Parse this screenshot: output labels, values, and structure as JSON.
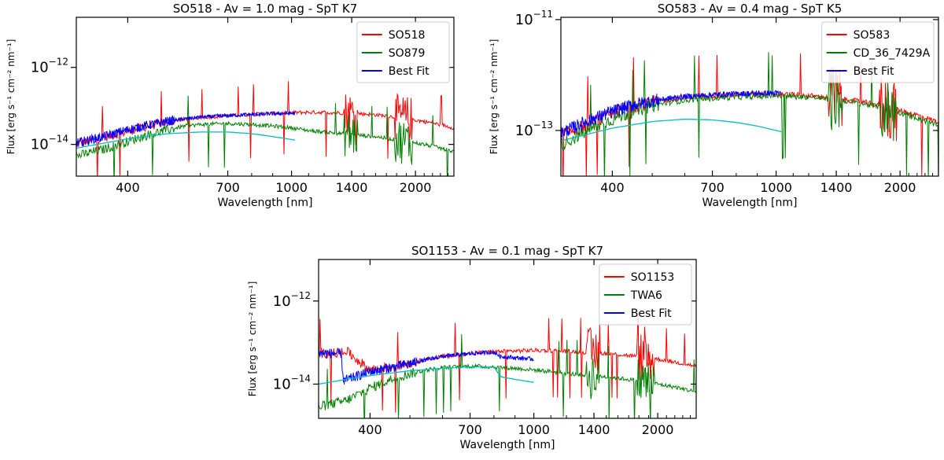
{
  "chart_data": [
    {
      "type": "line",
      "title": "SO518 - Av = 1.0 mag - SpT K7",
      "xlabel": "Wavelength [nm]",
      "ylabel": "Flux [erg s⁻¹ cm⁻² nm⁻¹]",
      "xscale": "log",
      "yscale": "log",
      "xlim": [
        300,
        2480
      ],
      "ylim": [
        1.5e-15,
        2e-11
      ],
      "xticks": [
        400,
        700,
        1000,
        1400,
        2000
      ],
      "yticks": [
        {
          "value": 1e-12,
          "label_base": "10",
          "label_exp": "−12"
        },
        {
          "value": 1e-14,
          "label_base": "10",
          "label_exp": "−14"
        }
      ],
      "legend_position": "top-right",
      "series": [
        {
          "name": "SO518",
          "color": "#ff0000",
          "style": "noisy",
          "x": [
            300,
            350,
            400,
            450,
            500,
            550,
            600,
            700,
            800,
            900,
            1000,
            1100,
            1200,
            1400,
            1600,
            1800,
            2000,
            2200,
            2480
          ],
          "y": [
            1e-14,
            1.5e-14,
            2.2e-14,
            3e-14,
            3.8e-14,
            4.5e-14,
            5e-14,
            5.5e-14,
            6e-14,
            6.4e-14,
            6.7e-14,
            6.8e-14,
            6.8e-14,
            6.5e-14,
            5.9e-14,
            5.1e-14,
            4.3e-14,
            3.6e-14,
            2.7e-14
          ]
        },
        {
          "name": "SO879",
          "color": "#008000",
          "style": "noisy",
          "x": [
            300,
            350,
            400,
            450,
            500,
            550,
            600,
            700,
            800,
            900,
            1000,
            1100,
            1200,
            1400,
            1600,
            1800,
            2000,
            2200,
            2480
          ],
          "y": [
            5e-15,
            7.5e-15,
            1.2e-14,
            1.8e-14,
            2.4e-14,
            3e-14,
            3.3e-14,
            3.5e-14,
            3.3e-14,
            3e-14,
            2.7e-14,
            2.3e-14,
            2.1e-14,
            1.8e-14,
            1.6e-14,
            1.3e-14,
            1.1e-14,
            9e-15,
            6.5e-15
          ]
        },
        {
          "name": "Best Fit",
          "color": "#0000ff",
          "style": "noisy",
          "x": [
            300,
            350,
            400,
            450,
            500,
            550,
            600,
            700,
            800,
            900,
            1020
          ],
          "y": [
            1.1e-14,
            1.6e-14,
            2.4e-14,
            3.2e-14,
            4e-14,
            4.6e-14,
            5.1e-14,
            5.6e-14,
            6e-14,
            6.3e-14,
            6.4e-14
          ]
        },
        {
          "name": "",
          "color": "#00bfbf",
          "style": "smooth",
          "x": [
            300,
            400,
            500,
            600,
            700,
            800,
            900,
            1020
          ],
          "y": [
            8e-15,
            1.4e-14,
            1.9e-14,
            2.1e-14,
            2.1e-14,
            1.9e-14,
            1.6e-14,
            1.3e-14
          ]
        }
      ]
    },
    {
      "type": "line",
      "title": "SO583 - Av = 0.4 mag - SpT K5",
      "xlabel": "Wavelength [nm]",
      "ylabel": "Flux [erg s⁻¹ cm⁻² nm⁻¹]",
      "xscale": "log",
      "yscale": "log",
      "xlim": [
        300,
        2480
      ],
      "ylim": [
        1.5e-14,
        1.1e-11
      ],
      "xticks": [
        400,
        700,
        1000,
        1400,
        2000
      ],
      "yticks": [
        {
          "value": 1e-11,
          "label_base": "10",
          "label_exp": "−11"
        },
        {
          "value": 1e-13,
          "label_base": "10",
          "label_exp": "−13"
        }
      ],
      "legend_position": "top-right",
      "series": [
        {
          "name": "SO583",
          "color": "#ff0000",
          "style": "noisy",
          "x": [
            300,
            350,
            400,
            450,
            500,
            550,
            600,
            700,
            800,
            900,
            1000,
            1100,
            1200,
            1400,
            1600,
            1800,
            2000,
            2200,
            2480
          ],
          "y": [
            8e-14,
            1.3e-13,
            2e-13,
            2.7e-13,
            3.2e-13,
            3.6e-13,
            3.9e-13,
            4.2e-13,
            4.4e-13,
            4.5e-13,
            4.5e-13,
            4.4e-13,
            4.2e-13,
            3.8e-13,
            3.3e-13,
            2.8e-13,
            2.3e-13,
            1.9e-13,
            1.4e-13
          ]
        },
        {
          "name": "CD_36_7429A",
          "color": "#008000",
          "style": "noisy",
          "x": [
            300,
            350,
            400,
            450,
            500,
            550,
            600,
            700,
            800,
            900,
            1000,
            1100,
            1200,
            1400,
            1600,
            1800,
            2000,
            2200,
            2480
          ],
          "y": [
            5.5e-14,
            1e-13,
            1.6e-13,
            2.2e-13,
            2.8e-13,
            3.2e-13,
            3.5e-13,
            3.8e-13,
            4e-13,
            4.1e-13,
            4.2e-13,
            4.1e-13,
            4e-13,
            3.6e-13,
            3.1e-13,
            2.6e-13,
            2.1e-13,
            1.7e-13,
            1.2e-13
          ]
        },
        {
          "name": "Best Fit",
          "color": "#0000ff",
          "style": "noisy",
          "x": [
            300,
            350,
            400,
            450,
            500,
            550,
            600,
            700,
            800,
            900,
            1030
          ],
          "y": [
            9e-14,
            1.5e-13,
            2.2e-13,
            2.9e-13,
            3.4e-13,
            3.8e-13,
            4.1e-13,
            4.4e-13,
            4.6e-13,
            4.7e-13,
            4.7e-13
          ]
        },
        {
          "name": "",
          "color": "#00bfbf",
          "style": "smooth",
          "x": [
            300,
            400,
            500,
            600,
            700,
            800,
            900,
            1030
          ],
          "y": [
            6.5e-14,
            1.1e-13,
            1.45e-13,
            1.6e-13,
            1.55e-13,
            1.4e-13,
            1.2e-13,
            9.5e-14
          ]
        }
      ]
    },
    {
      "type": "line",
      "title": "SO1153 - Av = 0.1 mag - SpT K7",
      "xlabel": "Wavelength [nm]",
      "ylabel": "Flux [erg s⁻¹ cm⁻² nm⁻¹]",
      "xscale": "log",
      "yscale": "log",
      "xlim": [
        300,
        2480
      ],
      "ylim": [
        1.5e-15,
        1e-11
      ],
      "xticks": [
        400,
        700,
        1000,
        1400,
        2000
      ],
      "yticks": [
        {
          "value": 1e-12,
          "label_base": "10",
          "label_exp": "−12"
        },
        {
          "value": 1e-14,
          "label_base": "10",
          "label_exp": "−14"
        }
      ],
      "legend_position": "top-right",
      "series": [
        {
          "name": "SO1153",
          "color": "#ff0000",
          "style": "noisy",
          "x": [
            300,
            340,
            345,
            400,
            450,
            500,
            550,
            600,
            700,
            800,
            900,
            1000,
            1100,
            1200,
            1400,
            1600,
            1800,
            2000,
            2200,
            2480
          ],
          "y": [
            5.5e-14,
            5.5e-14,
            7e-14,
            2.2e-14,
            2.6e-14,
            3.2e-14,
            4e-14,
            4.7e-14,
            5.5e-14,
            6e-14,
            6.3e-14,
            6.5e-14,
            6.4e-14,
            6.2e-14,
            5.7e-14,
            5.2e-14,
            4.6e-14,
            4e-14,
            3.4e-14,
            2.7e-14
          ]
        },
        {
          "name": "TWA6",
          "color": "#008000",
          "style": "noisy",
          "x": [
            300,
            350,
            400,
            450,
            500,
            550,
            600,
            700,
            800,
            900,
            1000,
            1100,
            1200,
            1400,
            1600,
            1800,
            2000,
            2200,
            2480
          ],
          "y": [
            2.8e-15,
            4e-15,
            8e-15,
            1.3e-14,
            1.8e-14,
            2.2e-14,
            2.5e-14,
            2.7e-14,
            2.6e-14,
            2.4e-14,
            2.2e-14,
            2e-14,
            1.8e-14,
            1.6e-14,
            1.4e-14,
            1.2e-14,
            1e-14,
            8.5e-15,
            6.5e-15
          ]
        },
        {
          "name": "Best Fit",
          "color": "#0000ff",
          "style": "noisy",
          "x": [
            300,
            340,
            345,
            400,
            450,
            500,
            550,
            600,
            700,
            800,
            830,
            900,
            1000
          ],
          "y": [
            5.5e-14,
            5.5e-14,
            1.2e-14,
            2e-14,
            2.5e-14,
            3.1e-14,
            3.9e-14,
            4.6e-14,
            5.4e-14,
            5.9e-14,
            4.6e-14,
            4.3e-14,
            4e-14
          ]
        },
        {
          "name": "",
          "color": "#00bfbf",
          "style": "smooth",
          "x": [
            300,
            350,
            400,
            500,
            600,
            700,
            800,
            830,
            900,
            1000
          ],
          "y": [
            1e-14,
            1.3e-14,
            1.6e-14,
            2.1e-14,
            2.4e-14,
            2.6e-14,
            2.6e-14,
            1.5e-14,
            1.3e-14,
            1.1e-14
          ]
        }
      ]
    }
  ]
}
